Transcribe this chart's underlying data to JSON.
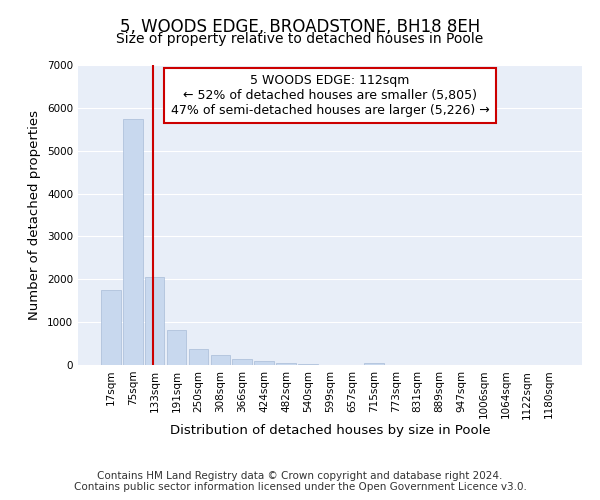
{
  "title": "5, WOODS EDGE, BROADSTONE, BH18 8EH",
  "subtitle": "Size of property relative to detached houses in Poole",
  "xlabel": "Distribution of detached houses by size in Poole",
  "ylabel": "Number of detached properties",
  "categories": [
    "17sqm",
    "75sqm",
    "133sqm",
    "191sqm",
    "250sqm",
    "308sqm",
    "366sqm",
    "424sqm",
    "482sqm",
    "540sqm",
    "599sqm",
    "657sqm",
    "715sqm",
    "773sqm",
    "831sqm",
    "889sqm",
    "947sqm",
    "1006sqm",
    "1064sqm",
    "1122sqm",
    "1180sqm"
  ],
  "values": [
    1750,
    5750,
    2050,
    825,
    375,
    225,
    130,
    100,
    50,
    20,
    10,
    5,
    55,
    2,
    2,
    1,
    1,
    0,
    0,
    0,
    0
  ],
  "bar_color": "#c8d8ee",
  "bar_edge_color": "#a8bcd8",
  "red_line_x": 1.92,
  "red_line_color": "#cc0000",
  "ylim": [
    0,
    7000
  ],
  "yticks": [
    0,
    1000,
    2000,
    3000,
    4000,
    5000,
    6000,
    7000
  ],
  "annotation_text": "5 WOODS EDGE: 112sqm\n← 52% of detached houses are smaller (5,805)\n47% of semi-detached houses are larger (5,226) →",
  "footer_line1": "Contains HM Land Registry data © Crown copyright and database right 2024.",
  "footer_line2": "Contains public sector information licensed under the Open Government Licence v3.0.",
  "background_color": "#ffffff",
  "plot_bg_color": "#e8eef8",
  "grid_color": "#ffffff",
  "title_fontsize": 12,
  "subtitle_fontsize": 10,
  "axis_label_fontsize": 9.5,
  "tick_fontsize": 7.5,
  "footer_fontsize": 7.5,
  "annotation_fontsize": 9
}
